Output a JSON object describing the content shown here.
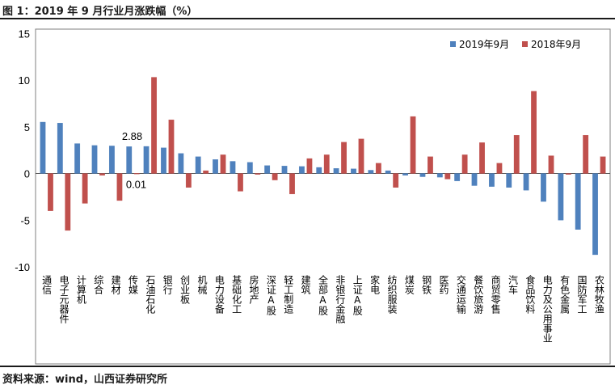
{
  "figure_title": "图 1：2019 年 9 月行业月涨跌幅（%）",
  "source": "资料来源：wind，山西证券研究所",
  "chart_data": {
    "type": "bar",
    "title": "",
    "xlabel": "",
    "ylabel": "",
    "ylim": [
      -10,
      15
    ],
    "yticks": [
      15,
      10,
      5,
      0,
      -5,
      -10
    ],
    "grid": false,
    "legend_position": "top-right",
    "categories": [
      "通信",
      "电子元器件",
      "计算机",
      "综合",
      "建材",
      "传媒",
      "石油石化",
      "银行",
      "创业板",
      "机械",
      "电力设备",
      "基础化工",
      "房地产",
      "深证A股",
      "轻工制造",
      "建筑",
      "全部A股",
      "非银行金融",
      "上证A股",
      "家电",
      "纺织服装",
      "煤炭",
      "钢铁",
      "医药",
      "交通运输",
      "餐饮旅游",
      "商贸零售",
      "汽车",
      "食品饮料",
      "电力及公用事业",
      "有色金属",
      "国防军工",
      "农林牧渔"
    ],
    "series": [
      {
        "name": "2019年9月",
        "color": "#4F81BD",
        "values": [
          5.5,
          5.4,
          3.2,
          3.0,
          2.95,
          2.88,
          2.9,
          2.75,
          2.15,
          1.8,
          1.5,
          1.3,
          1.2,
          0.85,
          0.8,
          0.75,
          0.65,
          0.55,
          0.5,
          0.35,
          0.3,
          -0.2,
          -0.35,
          -0.4,
          -0.8,
          -1.3,
          -1.4,
          -1.5,
          -1.8,
          -3.0,
          -5.0,
          -6.0,
          -8.7
        ]
      },
      {
        "name": "2018年9月",
        "color": "#C0504D",
        "values": [
          -4.0,
          -6.1,
          -3.2,
          -0.2,
          -2.9,
          0.01,
          10.3,
          5.75,
          -1.5,
          0.3,
          2.0,
          -1.9,
          -0.1,
          -0.7,
          -2.2,
          1.6,
          2.0,
          3.35,
          3.7,
          1.1,
          -1.5,
          6.1,
          1.8,
          -0.6,
          2.0,
          3.3,
          1.1,
          4.1,
          8.8,
          1.9,
          -0.1,
          4.1,
          1.8
        ]
      }
    ],
    "annotations": [
      {
        "text": "2.88",
        "series": 0,
        "category": "传媒"
      },
      {
        "text": "0.01",
        "series": 1,
        "category": "传媒"
      }
    ]
  }
}
